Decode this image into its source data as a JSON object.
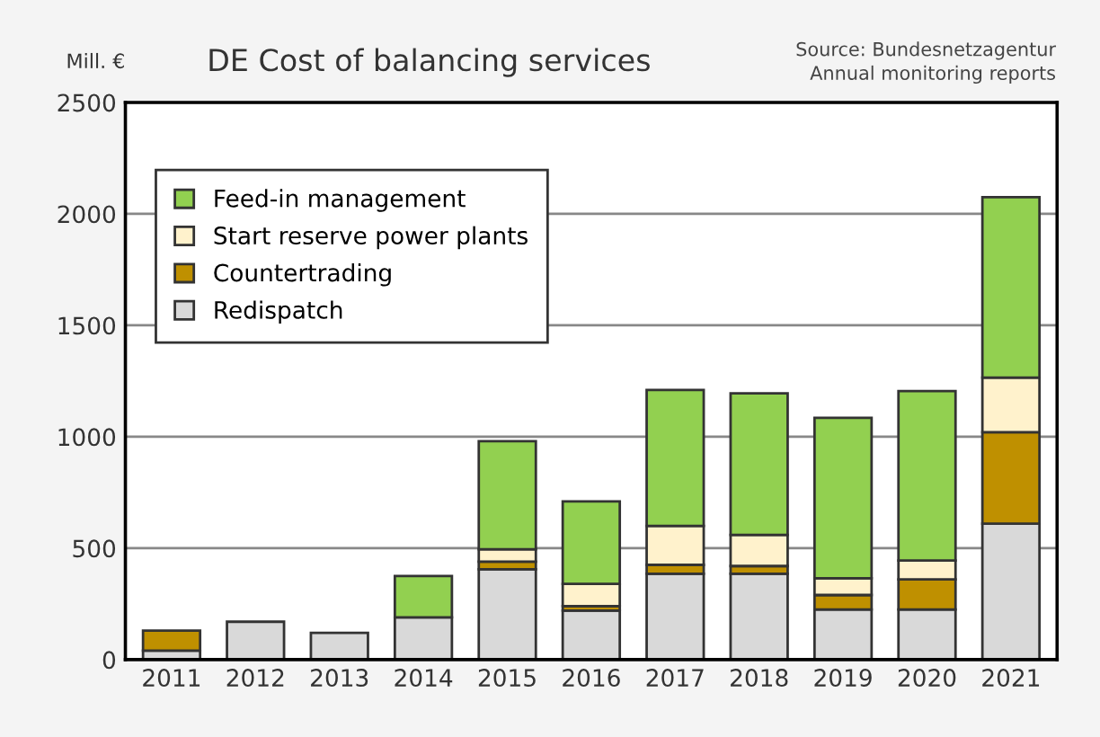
{
  "chart_data": {
    "type": "bar",
    "title": "DE Cost of balancing services",
    "ylabel": "Mill. €",
    "annotations": [
      "Source: Bundesnetzagentur\nAnnual monitoring reports"
    ],
    "categories": [
      "2011",
      "2012",
      "2013",
      "2014",
      "2015",
      "2016",
      "2017",
      "2018",
      "2019",
      "2020",
      "2021"
    ],
    "stacked": true,
    "series": [
      {
        "name": "Redispatch",
        "color": "#d9d9d9",
        "values": [
          40,
          170,
          120,
          190,
          405,
          220,
          385,
          385,
          225,
          225,
          610
        ]
      },
      {
        "name": "Countertrading",
        "color": "#bf9000",
        "values": [
          90,
          null,
          null,
          null,
          35,
          20,
          40,
          35,
          65,
          135,
          410
        ]
      },
      {
        "name": "Start reserve power plants",
        "color": "#fff2cc",
        "values": [
          null,
          null,
          null,
          null,
          55,
          100,
          175,
          140,
          75,
          85,
          245
        ]
      },
      {
        "name": "Feed-in management",
        "color": "#92d050",
        "values": [
          null,
          null,
          null,
          185,
          485,
          370,
          610,
          635,
          720,
          760,
          810
        ]
      }
    ],
    "ylim": [
      0,
      2500
    ],
    "yticks": [
      0,
      500,
      1000,
      1500,
      2000,
      2500
    ],
    "grid": "y",
    "legend": "top left"
  }
}
